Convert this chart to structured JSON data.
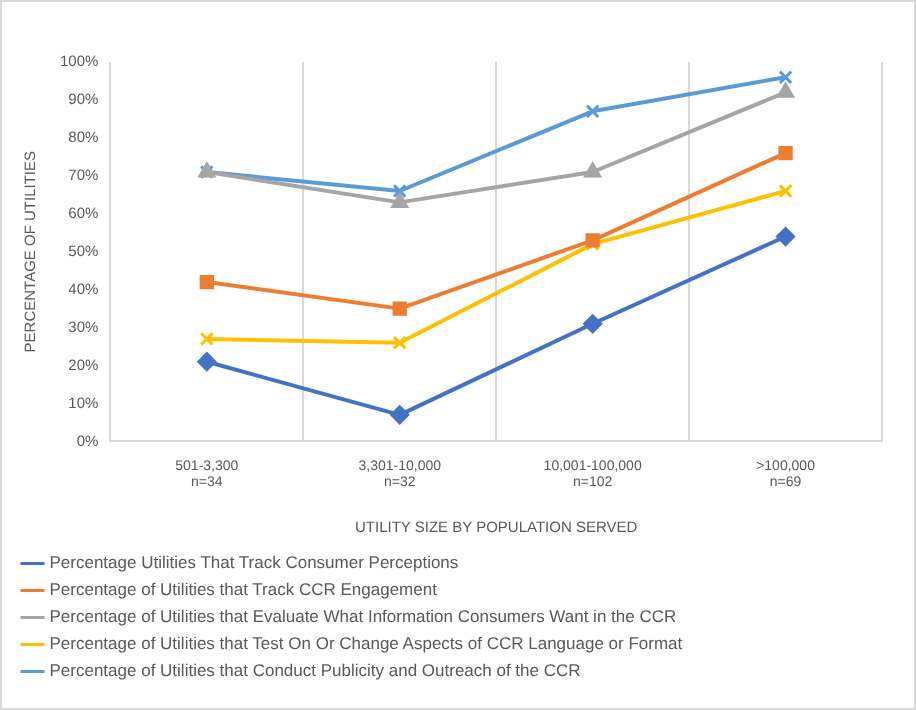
{
  "chart_data": {
    "type": "line",
    "xlabel": "UTILITY SIZE BY POPULATION SERVED",
    "ylabel": "PERCENTAGE OF UTILITIES",
    "categories": [
      "501-3,300\nn=34",
      "3,301-10,000\nn=32",
      "10,001-100,000\nn=102",
      ">100,000\nn=69"
    ],
    "series": [
      {
        "name": "Percentage Utilities That Track Consumer Perceptions",
        "color": "#4472c4",
        "marker": "diamond",
        "values": [
          21,
          7,
          31,
          54
        ]
      },
      {
        "name": "Percentage of Utilities that Track CCR Engagement",
        "color": "#ed7d31",
        "marker": "square",
        "values": [
          42,
          35,
          53,
          76
        ]
      },
      {
        "name": "Percentage of Utilities that Evaluate What Information Consumers Want in the CCR",
        "color": "#a5a5a5",
        "marker": "triangle",
        "values": [
          71,
          63,
          71,
          92
        ]
      },
      {
        "name": "Percentage of Utilities that Test On Or Change Aspects of CCR Language or Format",
        "color": "#ffc000",
        "marker": "cross",
        "values": [
          27,
          26,
          52,
          66
        ]
      },
      {
        "name": "Percentage of Utilities that Conduct Publicity and Outreach of the CCR",
        "color": "#5b9bd5",
        "marker": "cross",
        "values": [
          71,
          66,
          87,
          96
        ]
      }
    ],
    "ylim": [
      0,
      100
    ],
    "yticks": [
      {
        "value": 0,
        "label": "0%"
      },
      {
        "value": 10,
        "label": "10%"
      },
      {
        "value": 20,
        "label": "20%"
      },
      {
        "value": 30,
        "label": "30%"
      },
      {
        "value": 40,
        "label": "40%"
      },
      {
        "value": 50,
        "label": "50%"
      },
      {
        "value": 60,
        "label": "60%"
      },
      {
        "value": 70,
        "label": "70%"
      },
      {
        "value": 80,
        "label": "80%"
      },
      {
        "value": 90,
        "label": "90%"
      },
      {
        "value": 100,
        "label": "100%"
      }
    ],
    "grid": "x",
    "legend": "bottom",
    "line_style": "solid"
  }
}
